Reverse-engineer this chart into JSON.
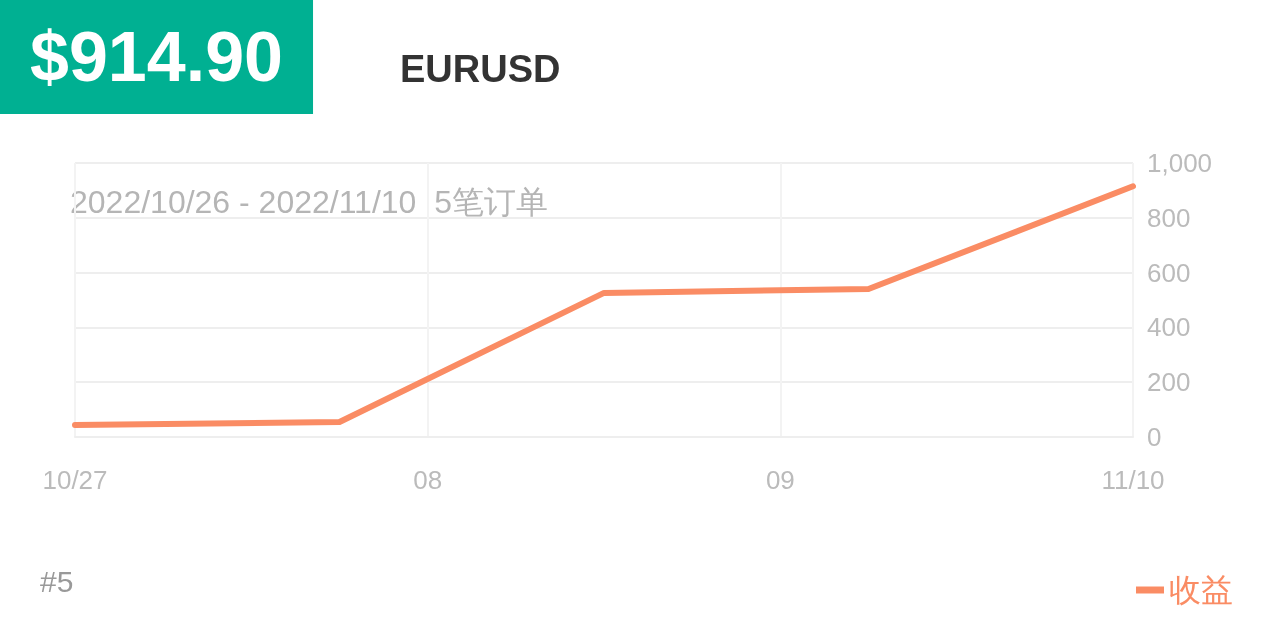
{
  "chart_data": {
    "type": "line",
    "title": "$914.90",
    "subtitle": "EURUSD",
    "annotations": [
      "2022/10/26 - 2022/11/10  5笔订单",
      "#5"
    ],
    "categories": [
      "10/27",
      null,
      null,
      null,
      "08",
      null,
      null,
      null,
      "09",
      null,
      null,
      null,
      "11/10"
    ],
    "ylim": [
      0,
      1000
    ],
    "yticks": [
      0,
      200,
      400,
      600,
      800,
      {
        "value": 1000,
        "label": "1,000"
      }
    ],
    "series": [
      {
        "name": "收益",
        "color": "#fa8c64",
        "values": [
          44,
          null,
          null,
          55,
          null,
          null,
          526,
          null,
          null,
          540,
          null,
          null,
          915
        ]
      }
    ],
    "grid": true,
    "legend": "bottom right",
    "marker": "none",
    "line_style": "solid"
  }
}
